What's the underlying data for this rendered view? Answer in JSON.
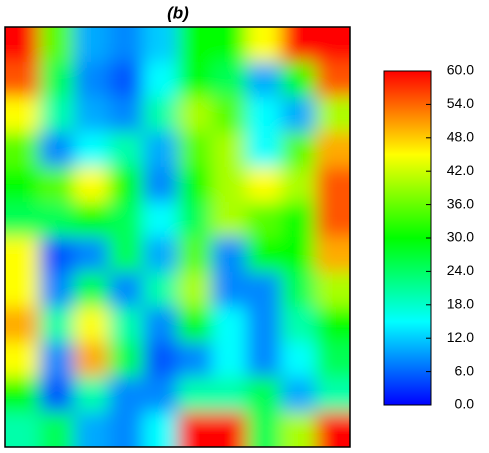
{
  "chart_data": {
    "type": "heatmap",
    "title": "(b)",
    "z": [
      [
        60,
        35,
        10,
        8,
        12,
        30,
        30,
        45,
        60,
        60
      ],
      [
        55,
        25,
        8,
        5,
        15,
        30,
        25,
        10,
        30,
        55
      ],
      [
        45,
        20,
        10,
        8,
        20,
        40,
        35,
        15,
        10,
        40
      ],
      [
        35,
        8,
        15,
        20,
        10,
        35,
        40,
        15,
        35,
        50
      ],
      [
        30,
        35,
        45,
        30,
        8,
        30,
        40,
        45,
        40,
        55
      ],
      [
        25,
        25,
        30,
        25,
        15,
        25,
        40,
        35,
        30,
        55
      ],
      [
        45,
        5,
        8,
        25,
        10,
        35,
        8,
        30,
        30,
        50
      ],
      [
        45,
        8,
        25,
        8,
        20,
        40,
        8,
        8,
        25,
        40
      ],
      [
        50,
        20,
        45,
        20,
        8,
        30,
        15,
        8,
        20,
        30
      ],
      [
        45,
        8,
        50,
        25,
        5,
        8,
        15,
        8,
        15,
        25
      ],
      [
        30,
        5,
        20,
        8,
        8,
        20,
        20,
        25,
        10,
        20
      ],
      [
        20,
        25,
        10,
        8,
        15,
        60,
        60,
        25,
        40,
        60
      ]
    ],
    "colorscale": [
      "#0000ff",
      "#00ffff",
      "#00ff00",
      "#ffff00",
      "#ff0000"
    ],
    "zlim": [
      0,
      60
    ],
    "zticks": [
      {
        "value": 0,
        "label": "0.0"
      },
      {
        "value": 6,
        "label": "6.0"
      },
      {
        "value": 12,
        "label": "12.0"
      },
      {
        "value": 18,
        "label": "18.0"
      },
      {
        "value": 24,
        "label": "24.0"
      },
      {
        "value": 30,
        "label": "30.0"
      },
      {
        "value": 36,
        "label": "36.0"
      },
      {
        "value": 42,
        "label": "42.0"
      },
      {
        "value": 48,
        "label": "48.0"
      },
      {
        "value": 54,
        "label": "54.0"
      },
      {
        "value": 60,
        "label": "60.0"
      }
    ]
  }
}
